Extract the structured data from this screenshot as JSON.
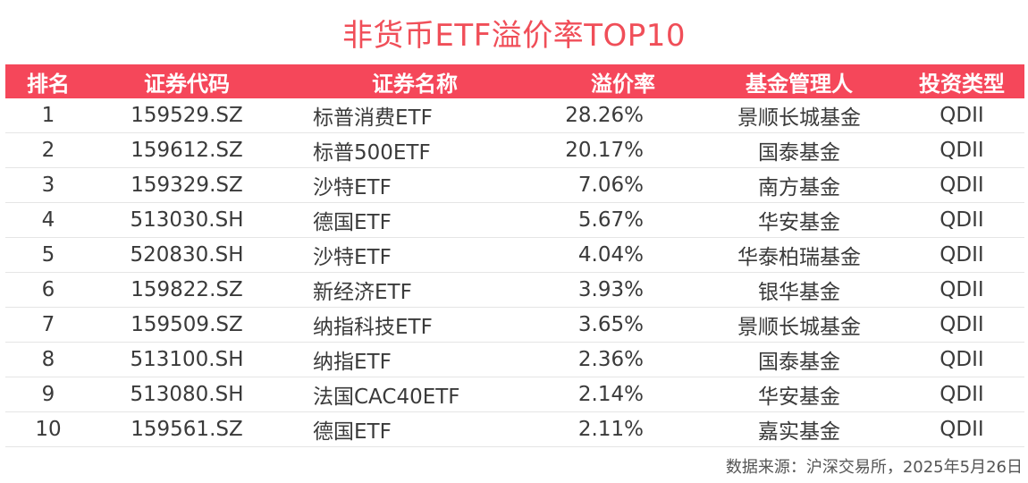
{
  "title": "非货币ETF溢价率TOP10",
  "table": {
    "headers": [
      "排名",
      "证券代码",
      "证券名称",
      "溢价率",
      "基金管理人",
      "投资类型"
    ],
    "rows": [
      {
        "rank": "1",
        "code": "159529.SZ",
        "name": "标普消费ETF",
        "premium": "28.26%",
        "manager": "景顺长城基金",
        "type": "QDII"
      },
      {
        "rank": "2",
        "code": "159612.SZ",
        "name": "标普500ETF",
        "premium": "20.17%",
        "manager": "国泰基金",
        "type": "QDII"
      },
      {
        "rank": "3",
        "code": "159329.SZ",
        "name": "沙特ETF",
        "premium": "7.06%",
        "manager": "南方基金",
        "type": "QDII"
      },
      {
        "rank": "4",
        "code": "513030.SH",
        "name": "德国ETF",
        "premium": "5.67%",
        "manager": "华安基金",
        "type": "QDII"
      },
      {
        "rank": "5",
        "code": "520830.SH",
        "name": "沙特ETF",
        "premium": "4.04%",
        "manager": "华泰柏瑞基金",
        "type": "QDII"
      },
      {
        "rank": "6",
        "code": "159822.SZ",
        "name": "新经济ETF",
        "premium": "3.93%",
        "manager": "银华基金",
        "type": "QDII"
      },
      {
        "rank": "7",
        "code": "159509.SZ",
        "name": "纳指科技ETF",
        "premium": "3.65%",
        "manager": "景顺长城基金",
        "type": "QDII"
      },
      {
        "rank": "8",
        "code": "513100.SH",
        "name": "纳指ETF",
        "premium": "2.36%",
        "manager": "国泰基金",
        "type": "QDII"
      },
      {
        "rank": "9",
        "code": "513080.SH",
        "name": "法国CAC40ETF",
        "premium": "2.14%",
        "manager": "华安基金",
        "type": "QDII"
      },
      {
        "rank": "10",
        "code": "159561.SZ",
        "name": "德国ETF",
        "premium": "2.11%",
        "manager": "嘉实基金",
        "type": "QDII"
      }
    ]
  },
  "source": "数据来源：沪深交易所，2025年5月26日",
  "colors": {
    "accent": "#f5475a",
    "title": "#f04e58",
    "text": "#3a3a3a"
  }
}
